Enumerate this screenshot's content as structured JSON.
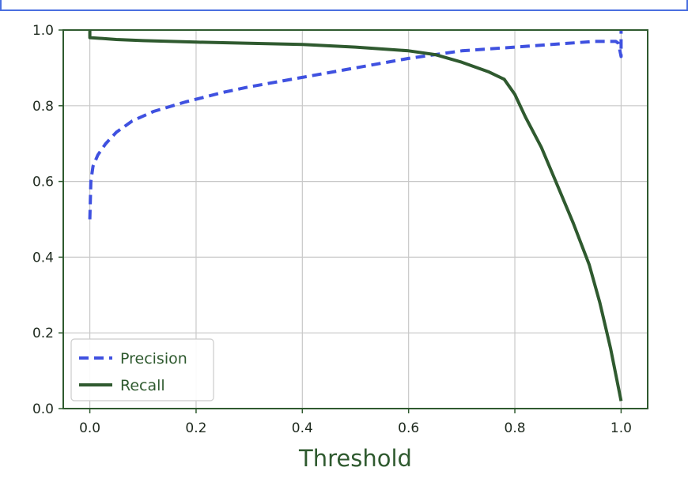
{
  "chart_data": {
    "type": "line",
    "title": "",
    "xlabel": "Threshold",
    "ylabel": "",
    "xlim": [
      -0.05,
      1.05
    ],
    "ylim": [
      0.0,
      1.0
    ],
    "xticks": [
      "0.0",
      "0.2",
      "0.4",
      "0.6",
      "0.8",
      "1.0"
    ],
    "yticks": [
      "0.0",
      "0.2",
      "0.4",
      "0.6",
      "0.8",
      "1.0"
    ],
    "grid": true,
    "legend_position": "lower-left",
    "series": [
      {
        "name": "Precision",
        "style": "dashed",
        "color": "#3f51e0",
        "points": [
          [
            0.0,
            0.5
          ],
          [
            0.002,
            0.6
          ],
          [
            0.006,
            0.64
          ],
          [
            0.015,
            0.67
          ],
          [
            0.03,
            0.7
          ],
          [
            0.05,
            0.73
          ],
          [
            0.08,
            0.76
          ],
          [
            0.12,
            0.785
          ],
          [
            0.18,
            0.81
          ],
          [
            0.25,
            0.835
          ],
          [
            0.3,
            0.85
          ],
          [
            0.4,
            0.875
          ],
          [
            0.5,
            0.9
          ],
          [
            0.6,
            0.925
          ],
          [
            0.65,
            0.935
          ],
          [
            0.7,
            0.945
          ],
          [
            0.8,
            0.955
          ],
          [
            0.9,
            0.965
          ],
          [
            0.95,
            0.97
          ],
          [
            0.99,
            0.97
          ],
          [
            0.995,
            0.965
          ],
          [
            1.0,
            0.93
          ],
          [
            1.0,
            1.0
          ]
        ]
      },
      {
        "name": "Recall",
        "style": "solid",
        "color": "#2f5a2f",
        "points": [
          [
            0.0,
            1.0
          ],
          [
            0.0,
            0.98
          ],
          [
            0.05,
            0.975
          ],
          [
            0.1,
            0.972
          ],
          [
            0.2,
            0.968
          ],
          [
            0.3,
            0.965
          ],
          [
            0.4,
            0.962
          ],
          [
            0.5,
            0.955
          ],
          [
            0.6,
            0.945
          ],
          [
            0.65,
            0.935
          ],
          [
            0.7,
            0.915
          ],
          [
            0.75,
            0.89
          ],
          [
            0.78,
            0.87
          ],
          [
            0.8,
            0.83
          ],
          [
            0.82,
            0.77
          ],
          [
            0.85,
            0.69
          ],
          [
            0.88,
            0.59
          ],
          [
            0.91,
            0.49
          ],
          [
            0.94,
            0.38
          ],
          [
            0.96,
            0.28
          ],
          [
            0.98,
            0.16
          ],
          [
            0.99,
            0.09
          ],
          [
            1.0,
            0.02
          ]
        ]
      }
    ]
  }
}
